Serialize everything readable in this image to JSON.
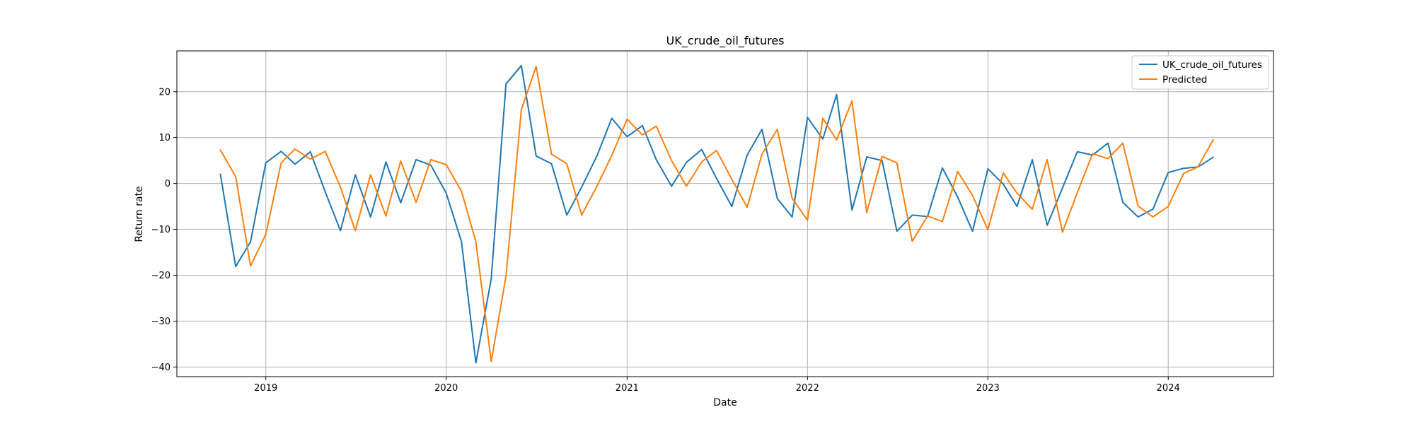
{
  "chart_data": {
    "type": "line",
    "title": "UK_crude_oil_futures",
    "xlabel": "Date",
    "ylabel": "Return rate",
    "x_tick_labels": [
      "2019",
      "2020",
      "2021",
      "2022",
      "2023",
      "2024"
    ],
    "y_ticks": [
      -40,
      -30,
      -20,
      -10,
      0,
      10,
      20
    ],
    "xlim": [
      "2018-07-05",
      "2024-08-01"
    ],
    "ylim": [
      -42.1,
      28.9
    ],
    "grid": true,
    "legend_position": "top-right",
    "x": [
      "2018-10-01",
      "2018-11-01",
      "2018-12-01",
      "2019-01-01",
      "2019-02-01",
      "2019-03-01",
      "2019-04-01",
      "2019-05-01",
      "2019-06-01",
      "2019-07-01",
      "2019-08-01",
      "2019-09-01",
      "2019-10-01",
      "2019-11-01",
      "2019-12-01",
      "2020-01-01",
      "2020-02-01",
      "2020-03-01",
      "2020-04-01",
      "2020-05-01",
      "2020-06-01",
      "2020-07-01",
      "2020-08-01",
      "2020-09-01",
      "2020-10-01",
      "2020-11-01",
      "2020-12-01",
      "2021-01-01",
      "2021-02-01",
      "2021-03-01",
      "2021-04-01",
      "2021-05-01",
      "2021-06-01",
      "2021-07-01",
      "2021-08-01",
      "2021-09-01",
      "2021-10-01",
      "2021-11-01",
      "2021-12-01",
      "2022-01-01",
      "2022-02-01",
      "2022-03-01",
      "2022-04-01",
      "2022-05-01",
      "2022-06-01",
      "2022-07-01",
      "2022-08-01",
      "2022-09-01",
      "2022-10-01",
      "2022-11-01",
      "2022-12-01",
      "2023-01-01",
      "2023-02-01",
      "2023-03-01",
      "2023-04-01",
      "2023-05-01",
      "2023-06-01",
      "2023-07-01",
      "2023-08-01",
      "2023-09-01",
      "2023-10-01",
      "2023-11-01",
      "2023-12-01",
      "2024-01-01",
      "2024-02-01",
      "2024-03-01",
      "2024-04-01"
    ],
    "series": [
      {
        "name": "UK_crude_oil_futures",
        "color": "#1f77b4",
        "values": [
          2.0,
          -18.1,
          -12.7,
          4.5,
          7.0,
          4.2,
          6.9,
          -1.8,
          -10.3,
          1.9,
          -7.3,
          4.7,
          -4.2,
          5.2,
          4.0,
          -2.1,
          -12.7,
          -39.1,
          -20.8,
          21.7,
          25.7,
          6.0,
          4.3,
          -6.9,
          -0.8,
          6.0,
          14.2,
          10.2,
          12.6,
          5.2,
          -0.6,
          4.6,
          7.4,
          1.1,
          -5.0,
          6.2,
          11.8,
          -3.3,
          -7.3,
          14.4,
          9.7,
          19.4,
          -5.8,
          5.8,
          5.0,
          -10.4,
          -6.9,
          -7.2,
          3.4,
          -3.0,
          -10.4,
          3.2,
          -0.1,
          -5.0,
          5.2,
          -9.1,
          -1.0,
          6.9,
          6.2,
          8.8,
          -4.1,
          -7.3,
          -5.6,
          2.4,
          3.3,
          3.6,
          5.7
        ]
      },
      {
        "name": "Predicted",
        "color": "#ff7f0e",
        "values": [
          7.3,
          1.5,
          -18.0,
          -11.1,
          4.5,
          7.5,
          5.3,
          7.0,
          -0.8,
          -10.3,
          1.9,
          -7.1,
          4.9,
          -4.1,
          5.2,
          4.1,
          -1.7,
          -12.7,
          -38.8,
          -20.2,
          16.1,
          25.5,
          6.4,
          4.3,
          -6.9,
          -0.6,
          6.1,
          14.0,
          10.6,
          12.5,
          5.0,
          -0.6,
          4.7,
          7.2,
          0.9,
          -5.2,
          6.4,
          11.8,
          -3.2,
          -8.0,
          14.2,
          9.5,
          18.0,
          -6.3,
          5.9,
          4.5,
          -12.6,
          -7.1,
          -8.3,
          2.6,
          -2.6,
          -10.1,
          2.3,
          -2.1,
          -5.6,
          5.2,
          -10.6,
          -2.0,
          6.5,
          5.4,
          8.8,
          -4.9,
          -7.3,
          -5.0,
          2.2,
          3.6,
          9.5
        ]
      }
    ]
  }
}
